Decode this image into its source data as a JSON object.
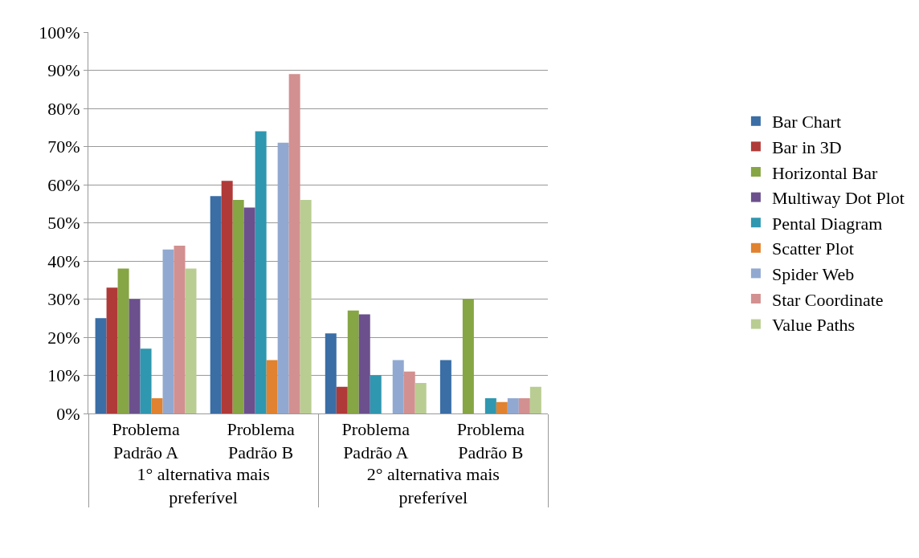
{
  "chart_data": {
    "type": "bar",
    "categories": [
      "Problema Padrão A",
      "Problema Padrão B",
      "Problema Padrão A",
      "Problema Padrão B"
    ],
    "annotations": [
      "1° alternativa mais preferível",
      "2° alternativa mais preferível"
    ],
    "series": [
      {
        "name": "Bar Chart",
        "color": "#3a6ea5",
        "values": [
          25,
          57,
          21,
          14
        ]
      },
      {
        "name": "Bar in 3D",
        "color": "#b03a38",
        "values": [
          33,
          61,
          7,
          0
        ]
      },
      {
        "name": "Horizontal Bar",
        "color": "#86a544",
        "values": [
          38,
          56,
          27,
          30
        ]
      },
      {
        "name": "Multiway Dot Plot",
        "color": "#6b508d",
        "values": [
          30,
          54,
          26,
          0
        ]
      },
      {
        "name": "Pental Diagram",
        "color": "#2f97b0",
        "values": [
          17,
          74,
          10,
          4
        ]
      },
      {
        "name": "Scatter Plot",
        "color": "#e0822f",
        "values": [
          4,
          14,
          0,
          3
        ]
      },
      {
        "name": "Spider Web",
        "color": "#91a9d0",
        "values": [
          43,
          71,
          14,
          4
        ]
      },
      {
        "name": "Star Coordinate",
        "color": "#d39090",
        "values": [
          44,
          89,
          11,
          4
        ]
      },
      {
        "name": "Value Paths",
        "color": "#b9cd92",
        "values": [
          38,
          56,
          8,
          7
        ]
      }
    ],
    "ylim": [
      0,
      100
    ],
    "yticks": [
      {
        "value": 0,
        "label": "0%"
      },
      {
        "value": 10,
        "label": "10%"
      },
      {
        "value": 20,
        "label": "20%"
      },
      {
        "value": 30,
        "label": "30%"
      },
      {
        "value": 40,
        "label": "40%"
      },
      {
        "value": 50,
        "label": "50%"
      },
      {
        "value": 60,
        "label": "60%"
      },
      {
        "value": 70,
        "label": "70%"
      },
      {
        "value": 80,
        "label": "80%"
      },
      {
        "value": 90,
        "label": "90%"
      },
      {
        "value": 100,
        "label": "100%"
      }
    ],
    "grid": "y",
    "legend": "right"
  }
}
